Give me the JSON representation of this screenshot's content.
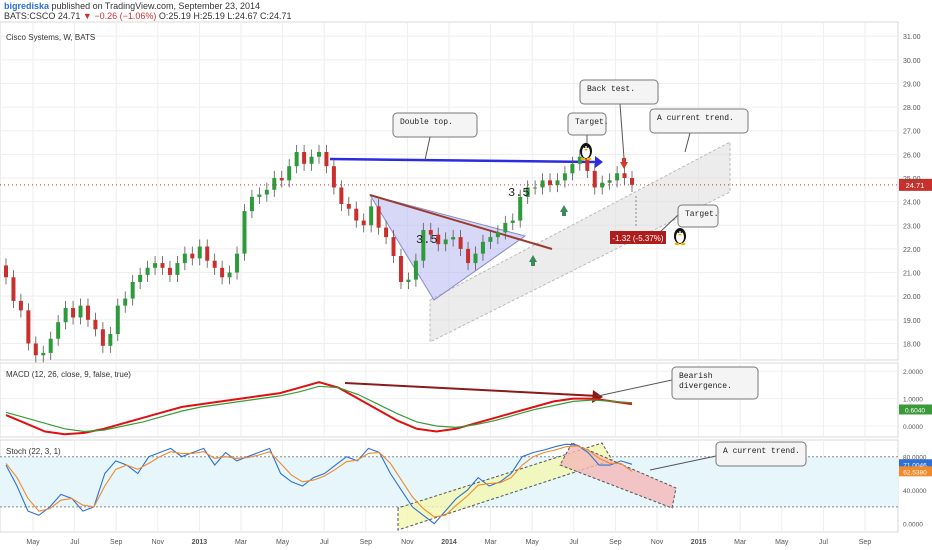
{
  "header": {
    "author": "bigrediska",
    "published": "published on TradingView.com, September 23, 2014",
    "symbol": "BATS:CSCO",
    "last": "24.71",
    "change": "▼ −0.26 (−1.06%)",
    "ohlc": "O:25.19 H:25.19 L:24.67 C:24.71"
  },
  "main_label": "Cisco Systems, W, BATS",
  "price_badge": "24.71",
  "drop_badge": "-1.32 (-5.37%)",
  "annotations": {
    "double_top": "Double top.",
    "target_top": "Target.",
    "back_test": "Back test.",
    "current_trend": "A current trend.",
    "target_right": "Target.",
    "num_1": "3.5",
    "num_2": "3.5",
    "bearish": "Bearish\ndivergence.",
    "stoch_trend": "A current trend."
  },
  "macd": {
    "label": "MACD (12, 26, close, 9, false, true)",
    "value": "0.6040",
    "ticks": [
      "2.0000",
      "1.0000",
      "0.0000"
    ]
  },
  "stoch": {
    "label": "Stoch (22, 3, 1)",
    "value1": "71.0046",
    "value2": "62.5380",
    "ticks": [
      "80.0000",
      "40.0000",
      "0.0000"
    ]
  },
  "chart_data": [
    {
      "type": "candlestick",
      "title": "Cisco Systems, W, BATS",
      "ylim": [
        17.3,
        31.6
      ],
      "y_ticks": [
        18,
        19,
        20,
        21,
        22,
        23,
        24,
        25,
        26,
        27,
        28,
        29,
        30,
        31
      ],
      "x_ticks": [
        "May",
        "Jul",
        "Sep",
        "Nov",
        "2013",
        "Mar",
        "May",
        "Jul",
        "Sep",
        "Nov",
        "2014",
        "Mar",
        "May",
        "Jul",
        "Sep",
        "Nov",
        "2015",
        "Mar",
        "May",
        "Jul",
        "Sep"
      ],
      "close_approx": [
        20.8,
        19.8,
        19.4,
        18.0,
        17.5,
        17.6,
        18.2,
        18.9,
        19.5,
        19.1,
        19.6,
        19.0,
        18.6,
        17.9,
        18.4,
        19.6,
        19.9,
        20.6,
        20.9,
        21.2,
        21.4,
        21.2,
        20.9,
        21.4,
        21.8,
        21.6,
        22.1,
        21.5,
        21.2,
        20.8,
        21.0,
        21.8,
        23.6,
        24.2,
        24.3,
        24.5,
        25.0,
        24.9,
        25.5,
        26.1,
        25.6,
        25.9,
        26.1,
        25.5,
        24.6,
        23.9,
        23.7,
        23.2,
        23.0,
        23.8,
        22.9,
        22.5,
        21.7,
        20.6,
        20.7,
        21.5,
        22.8,
        22.6,
        22.2,
        22.4,
        22.5,
        22.0,
        21.4,
        21.8,
        22.3,
        22.5,
        22.7,
        23.1,
        23.2,
        24.2,
        24.6,
        24.6,
        24.9,
        24.7,
        24.9,
        25.2,
        25.6,
        25.9,
        25.3,
        24.6,
        24.8,
        24.9,
        25.2,
        25.0,
        24.71
      ],
      "last_price": 24.71
    },
    {
      "type": "line",
      "title": "MACD (12, 26, close, 9, false, true)",
      "ylim": [
        -0.4,
        2.3
      ],
      "series": [
        {
          "name": "MACD",
          "values": [
            0.4,
            0.1,
            -0.2,
            -0.3,
            -0.25,
            -0.1,
            0.1,
            0.3,
            0.5,
            0.7,
            0.8,
            0.9,
            1.0,
            1.1,
            1.2,
            1.4,
            1.6,
            1.4,
            1.0,
            0.6,
            0.2,
            -0.1,
            -0.2,
            -0.1,
            0.1,
            0.3,
            0.5,
            0.7,
            0.9,
            1.0,
            1.0,
            0.9,
            0.8
          ]
        },
        {
          "name": "Signal",
          "values": [
            0.5,
            0.3,
            0.1,
            -0.1,
            -0.2,
            -0.15,
            0.0,
            0.15,
            0.35,
            0.55,
            0.7,
            0.8,
            0.9,
            1.0,
            1.1,
            1.25,
            1.45,
            1.4,
            1.15,
            0.8,
            0.45,
            0.15,
            0.0,
            -0.05,
            0.05,
            0.2,
            0.4,
            0.6,
            0.75,
            0.9,
            0.95,
            0.9,
            0.85
          ]
        }
      ],
      "last_value": 0.604
    },
    {
      "type": "line",
      "title": "Stoch (22, 3, 1)",
      "ylim": [
        -10,
        100
      ],
      "levels": [
        80,
        20
      ],
      "series": [
        {
          "name": "%K",
          "values": [
            70,
            45,
            15,
            10,
            20,
            35,
            30,
            15,
            20,
            60,
            75,
            70,
            60,
            80,
            85,
            90,
            80,
            85,
            90,
            70,
            85,
            75,
            80,
            85,
            90,
            60,
            50,
            45,
            55,
            60,
            70,
            80,
            75,
            90,
            85,
            60,
            40,
            20,
            10,
            0,
            15,
            30,
            40,
            55,
            45,
            50,
            60,
            80,
            85,
            88,
            92,
            95,
            94,
            85,
            70,
            70,
            75,
            71
          ]
        },
        {
          "name": "%D",
          "values": [
            72,
            55,
            30,
            15,
            18,
            28,
            30,
            22,
            20,
            45,
            65,
            70,
            65,
            72,
            80,
            86,
            84,
            84,
            86,
            78,
            80,
            78,
            79,
            82,
            86,
            72,
            58,
            50,
            52,
            57,
            65,
            74,
            76,
            84,
            85,
            72,
            52,
            32,
            18,
            8,
            10,
            22,
            33,
            46,
            48,
            49,
            55,
            70,
            80,
            85,
            88,
            92,
            93,
            88,
            78,
            72,
            72,
            62.5
          ]
        }
      ],
      "last_values": [
        71.0046,
        62.538
      ]
    }
  ]
}
